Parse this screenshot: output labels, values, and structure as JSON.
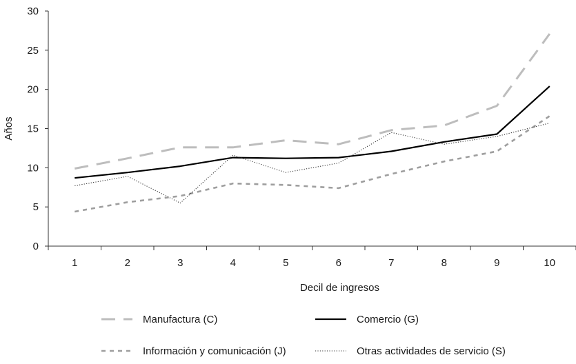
{
  "chart_data": {
    "type": "line",
    "xlabel": "Decil de ingresos",
    "ylabel": "Años",
    "categories": [
      "1",
      "2",
      "3",
      "4",
      "5",
      "6",
      "7",
      "8",
      "9",
      "10"
    ],
    "y_ticks": [
      "0",
      "5",
      "10",
      "15",
      "20",
      "25",
      "30"
    ],
    "ylim": [
      0,
      30
    ],
    "grid": false,
    "legend_position": "bottom",
    "series": [
      {
        "name": "Manufactura (C)",
        "style": "long-dash",
        "color": "#bdbdbd",
        "values": [
          9.9,
          11.2,
          12.6,
          12.6,
          13.5,
          13.0,
          14.8,
          15.4,
          17.9,
          27.1
        ]
      },
      {
        "name": "Comercio (G)",
        "style": "solid",
        "color": "#000000",
        "values": [
          8.7,
          9.4,
          10.2,
          11.3,
          11.2,
          11.3,
          12.1,
          13.3,
          14.3,
          20.4
        ]
      },
      {
        "name": "Información y comunicación (J)",
        "style": "short-dash",
        "color": "#9e9e9e",
        "values": [
          4.4,
          5.6,
          6.4,
          8.0,
          7.8,
          7.4,
          9.2,
          10.8,
          12.1,
          16.6
        ]
      },
      {
        "name": "Otras actividades de servicio (S)",
        "style": "dotted",
        "color": "#333333",
        "values": [
          7.7,
          8.9,
          5.5,
          11.6,
          9.4,
          10.6,
          14.5,
          13.0,
          14.0,
          15.7
        ]
      }
    ]
  }
}
